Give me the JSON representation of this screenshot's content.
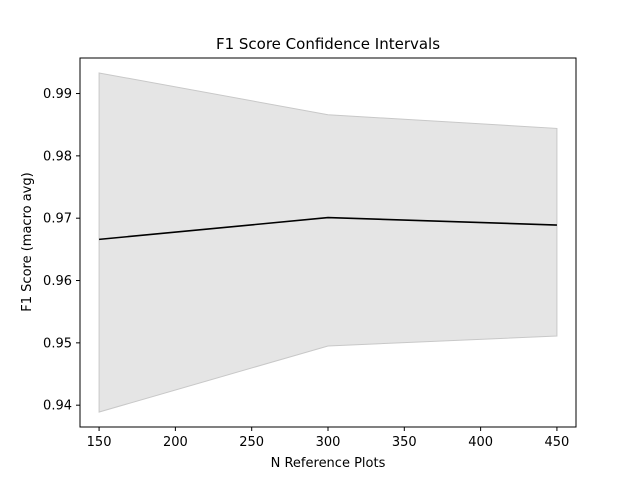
{
  "chart_data": {
    "type": "line",
    "title": "F1 Score Confidence Intervals",
    "xlabel": "N Reference Plots",
    "ylabel": "F1 Score (macro avg)",
    "xlim": [
      137.5,
      462.5
    ],
    "ylim": [
      0.9365,
      0.9957
    ],
    "x_ticks": [
      150,
      200,
      250,
      300,
      350,
      400,
      450
    ],
    "y_ticks": [
      0.94,
      0.95,
      0.96,
      0.97,
      0.98,
      0.99
    ],
    "x": [
      150,
      300,
      450
    ],
    "series": [
      {
        "values": [
          0.9666,
          0.9701,
          0.9689
        ],
        "color": "#000000"
      }
    ],
    "confidence_band": {
      "lower": [
        0.9389,
        0.9495,
        0.9511
      ],
      "upper": [
        0.9933,
        0.9866,
        0.9844
      ],
      "color": "#d3d3d3"
    },
    "grid": false,
    "legend": "none"
  }
}
